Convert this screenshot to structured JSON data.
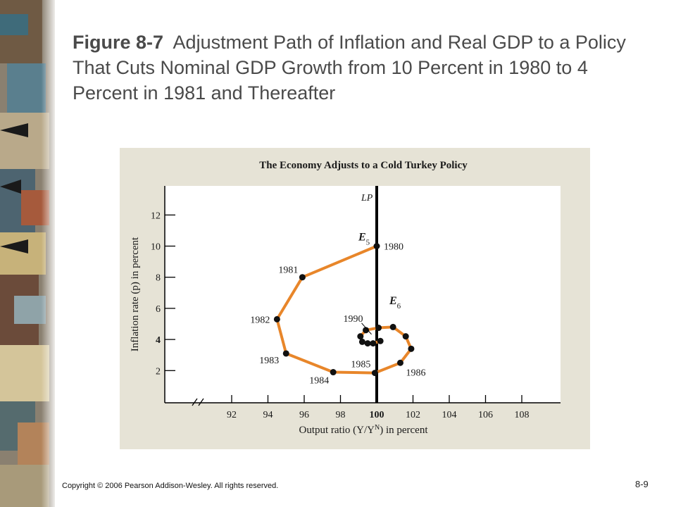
{
  "slide": {
    "figure_label": "Figure 8-7",
    "title": "Adjustment Path of Inflation and Real GDP to a Policy That Cuts Nominal GDP Growth from 10 Percent in 1980 to 4 Percent in 1981 and Thereafter",
    "copyright": "Copyright © 2006 Pearson Addison-Wesley. All rights reserved.",
    "page_number": "8-9"
  },
  "chart_data": {
    "type": "line",
    "title": "The Economy Adjusts to a Cold Turkey Policy",
    "xlabel": "Output ratio (Y/Y",
    "xlabel_sup": "N",
    "xlabel_end": ") in percent",
    "ylabel": "Inflation rate (p) in percent",
    "xlim": [
      88,
      110
    ],
    "ylim": [
      0.5,
      14
    ],
    "x_ticks": [
      92,
      94,
      96,
      98,
      100,
      102,
      104,
      106,
      108
    ],
    "y_ticks": [
      2,
      4,
      6,
      8,
      10,
      12
    ],
    "bold_ticks": {
      "x": 100,
      "y": 4
    },
    "lp_line": {
      "label": "LP",
      "x": 100
    },
    "path": [
      {
        "x": 100.0,
        "y": 10.0,
        "label": "1980"
      },
      {
        "x": 95.9,
        "y": 8.0,
        "label": "1981"
      },
      {
        "x": 94.5,
        "y": 5.3,
        "label": "1982"
      },
      {
        "x": 95.0,
        "y": 3.1,
        "label": "1983"
      },
      {
        "x": 97.6,
        "y": 1.9,
        "label": "1984"
      },
      {
        "x": 99.9,
        "y": 1.85,
        "label": "1985"
      },
      {
        "x": 101.3,
        "y": 2.5,
        "label": "1986"
      },
      {
        "x": 101.9,
        "y": 3.4
      },
      {
        "x": 101.6,
        "y": 4.2
      },
      {
        "x": 100.9,
        "y": 4.8
      },
      {
        "x": 100.1,
        "y": 4.75
      },
      {
        "x": 99.4,
        "y": 4.6,
        "label": "1990"
      },
      {
        "x": 99.1,
        "y": 4.2
      },
      {
        "x": 99.2,
        "y": 3.85
      },
      {
        "x": 99.5,
        "y": 3.75
      },
      {
        "x": 99.8,
        "y": 3.75
      },
      {
        "x": 100.2,
        "y": 3.9
      }
    ],
    "equilibria": [
      {
        "label": "E",
        "sub": "5",
        "x": 100,
        "y": 10
      },
      {
        "label": "E",
        "sub": "6",
        "x": 100,
        "y": 4
      }
    ],
    "colors": {
      "panel": "#e6e3d6",
      "plot_bg": "#ffffff",
      "path": "#e8862a",
      "points": "#111111",
      "lp": "#000000",
      "title_text": "#4a4a4a"
    }
  }
}
